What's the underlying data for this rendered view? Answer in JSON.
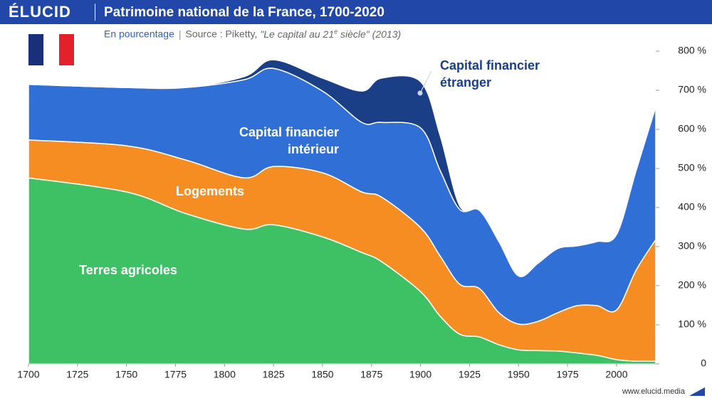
{
  "brand": "ÉLUCID",
  "footer": "www.elucid.media",
  "subtitle": "En pourcentage",
  "source": {
    "text": "Source : Piketty, ",
    "title_start": "\"Le capital au 21",
    "title_sup": "e",
    "title_end": " siècle\" (2013)"
  },
  "chart_data": {
    "type": "area",
    "stacked": true,
    "title": "Patrimoine national de la France, 1700-2020",
    "x": [
      1700,
      1750,
      1780,
      1810,
      1825,
      1850,
      1870,
      1880,
      1900,
      1910,
      1920,
      1930,
      1940,
      1950,
      1960,
      1970,
      1980,
      1990,
      2000,
      2010,
      2020
    ],
    "series": [
      {
        "name": "Terres agricoles",
        "color": "#3ec064",
        "values": [
          476,
          440,
          385,
          345,
          356,
          325,
          285,
          262,
          185,
          122,
          76,
          69,
          49,
          36,
          34,
          33,
          28,
          22,
          11,
          7,
          7
        ]
      },
      {
        "name": "Logements",
        "color": "#f68d23",
        "values": [
          97,
          118,
          137,
          131,
          149,
          164,
          155,
          165,
          164,
          154,
          128,
          124,
          82,
          66,
          75,
          98,
          121,
          127,
          127,
          233,
          311
        ]
      },
      {
        "name": "Capital financier intérieur",
        "color": "#2f6fd6",
        "values": [
          142,
          149,
          185,
          251,
          251,
          209,
          178,
          191,
          255,
          219,
          191,
          200,
          182,
          123,
          149,
          164,
          153,
          164,
          193,
          255,
          340
        ]
      },
      {
        "name": "Capital financier étranger",
        "color": "#1a3f86",
        "values": [
          0,
          0,
          0,
          8,
          22,
          33,
          80,
          113,
          118,
          89,
          9,
          0,
          0,
          0,
          0,
          0,
          0,
          0,
          0,
          0,
          0
        ]
      }
    ],
    "xlim": [
      1700,
      2020
    ],
    "xticks": [
      1700,
      1725,
      1750,
      1775,
      1800,
      1825,
      1850,
      1875,
      1900,
      1925,
      1950,
      1975,
      2000
    ],
    "ylim": [
      0,
      800
    ],
    "yticks": [
      0,
      {
        "value": 100,
        "label": "100 %"
      },
      {
        "value": 200,
        "label": "200 %"
      },
      {
        "value": 300,
        "label": "300 %"
      },
      {
        "value": 400,
        "label": "400 %"
      },
      {
        "value": 500,
        "label": "500 %"
      },
      {
        "value": 600,
        "label": "600 %"
      },
      {
        "value": 700,
        "label": "700 %"
      },
      {
        "value": 800,
        "label": "800 %"
      }
    ],
    "grid": false
  }
}
